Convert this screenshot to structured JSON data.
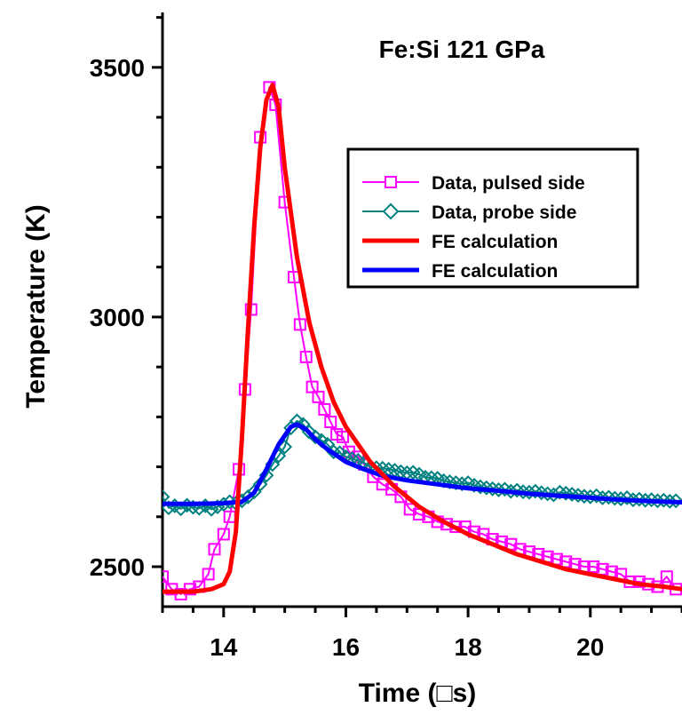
{
  "chart_data": {
    "type": "line",
    "title": "Fe:Si 121 GPa",
    "xlabel": "Time (□s)",
    "ylabel": "Temperature (K)",
    "xlim": [
      13,
      21.5
    ],
    "ylim": [
      2420,
      3610
    ],
    "x_ticks": [
      14,
      16,
      18,
      20
    ],
    "x_tick_labels": [
      "14",
      "16",
      "18",
      "20"
    ],
    "y_ticks": [
      2500,
      3000,
      3500
    ],
    "y_tick_labels": [
      "2500",
      "3000",
      "3500"
    ],
    "grid": false,
    "legend_position": "top-right",
    "series": [
      {
        "name": "Data, pulsed side",
        "color": "#ff00ff",
        "marker": "square",
        "x": [
          13.0,
          13.15,
          13.3,
          13.45,
          13.6,
          13.75,
          13.85,
          14.0,
          14.1,
          14.25,
          14.35,
          14.45,
          14.6,
          14.75,
          14.85,
          15.0,
          15.15,
          15.25,
          15.35,
          15.45,
          15.55,
          15.65,
          15.75,
          15.85,
          15.95,
          16.05,
          16.2,
          16.3,
          16.45,
          16.6,
          16.75,
          16.9,
          17.05,
          17.2,
          17.35,
          17.5,
          17.65,
          17.8,
          17.95,
          18.1,
          18.25,
          18.4,
          18.55,
          18.7,
          18.85,
          19.0,
          19.15,
          19.3,
          19.45,
          19.6,
          19.75,
          19.9,
          20.05,
          20.2,
          20.35,
          20.5,
          20.65,
          20.8,
          20.95,
          21.1,
          21.25,
          21.4
        ],
        "y": [
          2480,
          2455,
          2445,
          2455,
          2460,
          2485,
          2535,
          2565,
          2600,
          2695,
          2855,
          3015,
          3360,
          3460,
          3425,
          3230,
          3080,
          2985,
          2920,
          2860,
          2840,
          2815,
          2790,
          2765,
          2760,
          2730,
          2720,
          2705,
          2680,
          2665,
          2655,
          2640,
          2615,
          2605,
          2600,
          2590,
          2585,
          2580,
          2580,
          2570,
          2565,
          2555,
          2550,
          2545,
          2535,
          2530,
          2525,
          2520,
          2515,
          2510,
          2505,
          2500,
          2500,
          2495,
          2490,
          2485,
          2470,
          2470,
          2465,
          2460,
          2480,
          2455
        ]
      },
      {
        "name": "Data, probe side",
        "color": "#008080",
        "marker": "diamond",
        "x": [
          13.0,
          13.1,
          13.2,
          13.3,
          13.4,
          13.5,
          13.6,
          13.7,
          13.8,
          13.9,
          14.0,
          14.1,
          14.2,
          14.3,
          14.4,
          14.5,
          14.6,
          14.7,
          14.8,
          14.9,
          15.0,
          15.1,
          15.2,
          15.3,
          15.4,
          15.5,
          15.6,
          15.7,
          15.8,
          15.9,
          16.0,
          16.1,
          16.2,
          16.3,
          16.4,
          16.5,
          16.6,
          16.7,
          16.8,
          16.9,
          17.0,
          17.1,
          17.2,
          17.3,
          17.4,
          17.5,
          17.6,
          17.7,
          17.8,
          17.9,
          18.0,
          18.1,
          18.2,
          18.3,
          18.4,
          18.5,
          18.6,
          18.7,
          18.8,
          18.9,
          19.0,
          19.1,
          19.2,
          19.3,
          19.4,
          19.5,
          19.6,
          19.7,
          19.8,
          19.9,
          20.0,
          20.1,
          20.2,
          20.3,
          20.4,
          20.5,
          20.6,
          20.7,
          20.8,
          20.9,
          21.0,
          21.1,
          21.2,
          21.3,
          21.4
        ],
        "y": [
          2640,
          2618,
          2622,
          2616,
          2623,
          2619,
          2617,
          2622,
          2615,
          2620,
          2625,
          2630,
          2627,
          2632,
          2640,
          2650,
          2665,
          2683,
          2705,
          2722,
          2740,
          2778,
          2792,
          2785,
          2770,
          2760,
          2753,
          2745,
          2730,
          2728,
          2720,
          2716,
          2713,
          2708,
          2700,
          2698,
          2697,
          2695,
          2693,
          2690,
          2688,
          2689,
          2685,
          2679,
          2678,
          2677,
          2672,
          2670,
          2668,
          2666,
          2668,
          2663,
          2660,
          2658,
          2656,
          2654,
          2655,
          2651,
          2653,
          2650,
          2649,
          2651,
          2648,
          2646,
          2644,
          2649,
          2647,
          2645,
          2643,
          2641,
          2640,
          2642,
          2638,
          2639,
          2637,
          2636,
          2638,
          2634,
          2635,
          2633,
          2634,
          2632,
          2633,
          2631,
          2632
        ]
      },
      {
        "name": "FE calculation",
        "color": "#ff0000",
        "marker": "none",
        "x": [
          13.0,
          13.5,
          13.8,
          14.0,
          14.1,
          14.2,
          14.3,
          14.4,
          14.5,
          14.6,
          14.7,
          14.8,
          14.9,
          15.0,
          15.2,
          15.4,
          15.6,
          15.8,
          16.0,
          16.4,
          16.8,
          17.2,
          17.6,
          18.0,
          18.4,
          18.8,
          19.2,
          19.6,
          20.0,
          20.4,
          20.8,
          21.2,
          21.5
        ],
        "y": [
          2450,
          2450,
          2455,
          2465,
          2490,
          2570,
          2760,
          2980,
          3180,
          3340,
          3435,
          3465,
          3420,
          3300,
          3120,
          2990,
          2900,
          2830,
          2780,
          2710,
          2660,
          2620,
          2590,
          2565,
          2545,
          2525,
          2510,
          2495,
          2485,
          2475,
          2465,
          2460,
          2455
        ]
      },
      {
        "name": "FE calculation",
        "color": "#0000ff",
        "marker": "none",
        "x": [
          13.0,
          13.5,
          14.0,
          14.3,
          14.5,
          14.7,
          14.9,
          15.1,
          15.2,
          15.35,
          15.5,
          15.7,
          16.0,
          16.3,
          16.6,
          17.0,
          17.5,
          18.0,
          18.5,
          19.0,
          19.5,
          20.0,
          20.5,
          21.0,
          21.5
        ],
        "y": [
          2626,
          2626,
          2627,
          2630,
          2648,
          2695,
          2745,
          2780,
          2785,
          2775,
          2755,
          2735,
          2710,
          2695,
          2682,
          2673,
          2665,
          2657,
          2652,
          2646,
          2642,
          2638,
          2634,
          2631,
          2629
        ]
      }
    ]
  }
}
